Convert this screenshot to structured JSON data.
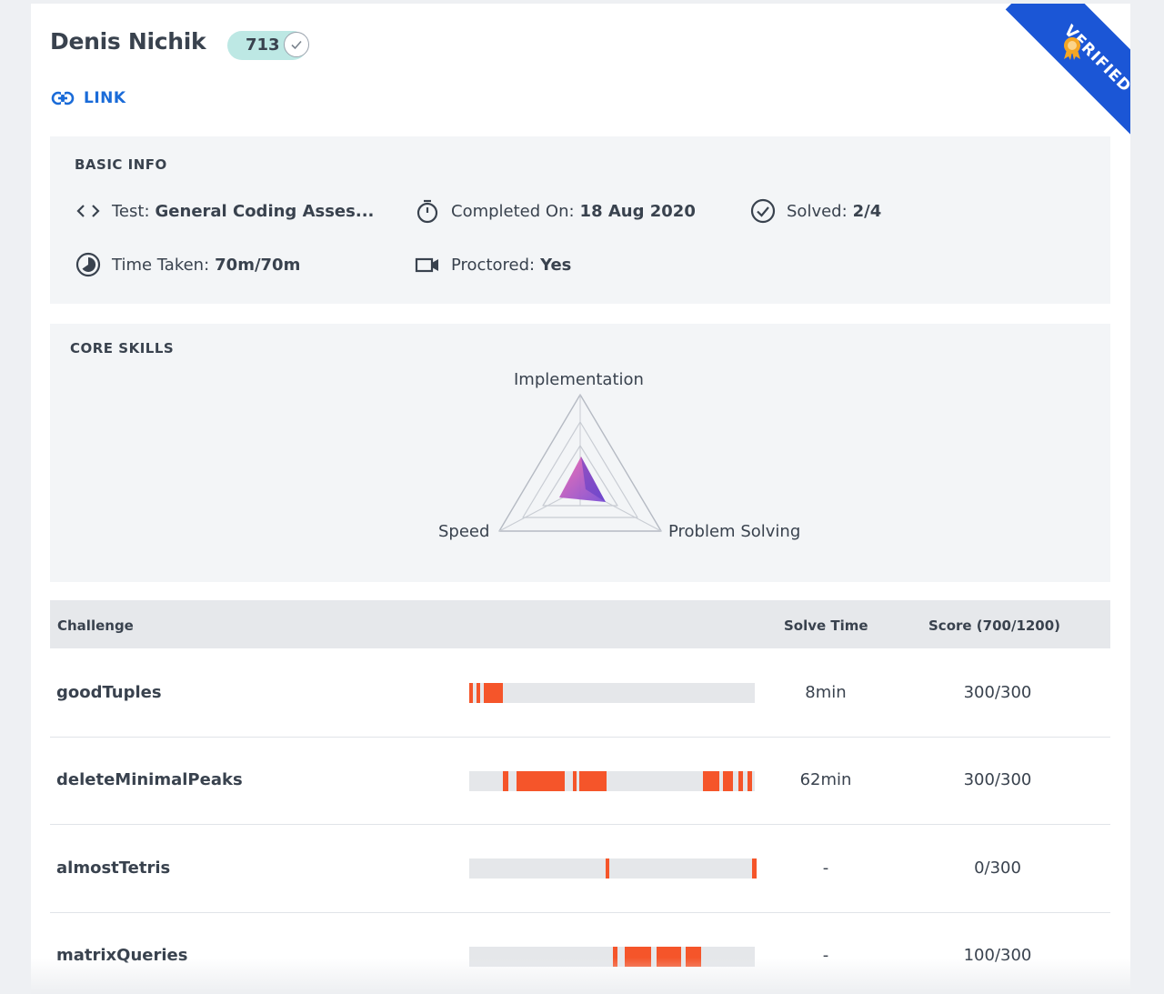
{
  "profile": {
    "name": "Denis Nichik",
    "score": "713",
    "link_label": "LINK",
    "ribbon_label": "VERIFIED"
  },
  "basic_info": {
    "title": "BASIC INFO",
    "test_label": "Test:",
    "test_value": "General Coding Asses...",
    "completed_label": "Completed On:",
    "completed_value": "18 Aug 2020",
    "solved_label": "Solved:",
    "solved_value": "2/4",
    "time_label": "Time Taken:",
    "time_value": "70m/70m",
    "proctored_label": "Proctored:",
    "proctored_value": "Yes"
  },
  "core_skills": {
    "title": "CORE SKILLS",
    "axes": [
      "Implementation",
      "Speed",
      "Problem Solving"
    ]
  },
  "table": {
    "col_challenge": "Challenge",
    "col_solve_time": "Solve Time",
    "col_score": "Score (700/1200)",
    "rows": [
      {
        "name": "goodTuples",
        "solve_time": "8min",
        "score": "300/300"
      },
      {
        "name": "deleteMinimalPeaks",
        "solve_time": "62min",
        "score": "300/300"
      },
      {
        "name": "almostTetris",
        "solve_time": "-",
        "score": "0/300"
      },
      {
        "name": "matrixQueries",
        "solve_time": "-",
        "score": "100/300"
      }
    ]
  },
  "colors": {
    "accent": "#1b56d6",
    "activity": "#f5552a",
    "score_pill": "#bde8e4",
    "link": "#1a6bd8"
  }
}
